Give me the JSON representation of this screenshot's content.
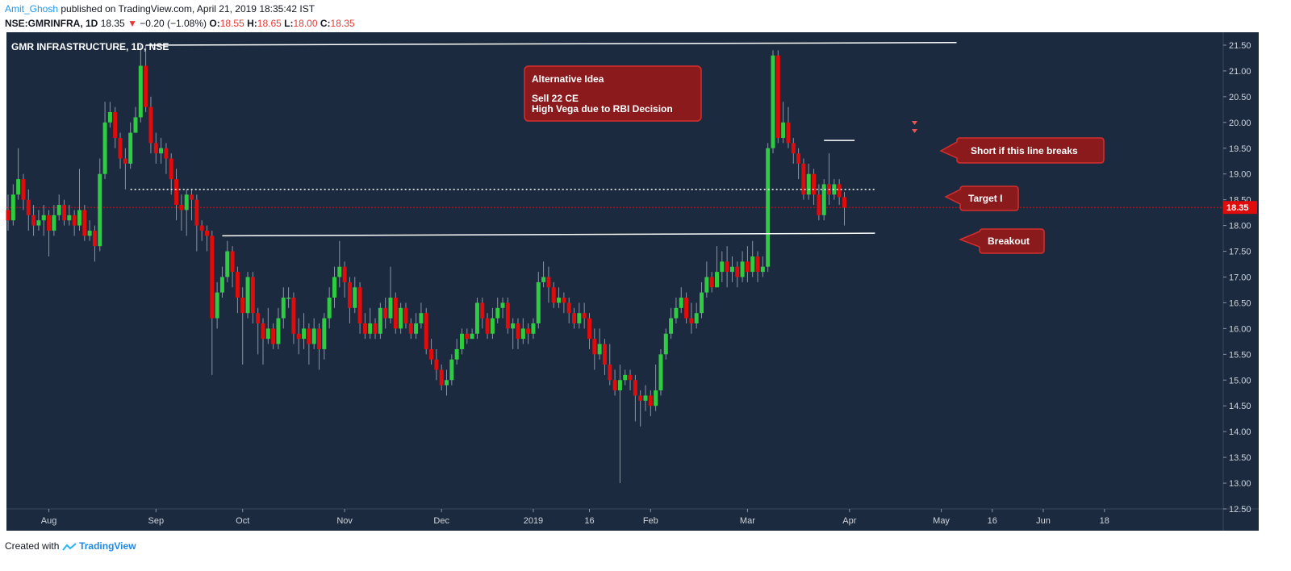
{
  "header": {
    "author": "Amit_Ghosh",
    "published_text": "published on TradingView.com, April 21, 2019 18:35:42 IST",
    "symbol": "NSE:GMRINFRA, 1D",
    "last": "18.35",
    "change_arrow": "▼",
    "change": "−0.20 (−1.08%)",
    "o_label": "O:",
    "o_value": "18.55",
    "h_label": "H:",
    "h_value": "18.65",
    "l_label": "L:",
    "l_value": "18.00",
    "c_label": "C:",
    "c_value": "18.35"
  },
  "footer": {
    "created_with": "Created with",
    "brand": "TradingView"
  },
  "colors": {
    "background": "#1b2a3e",
    "up": "#2ecc40",
    "down": "#e00b0b",
    "annotation_bg": "#8b1a1d",
    "annotation_border": "#d32f2f",
    "price_tag": "#e00b0b",
    "line": "#ffffff"
  },
  "chart_data": {
    "type": "candlestick",
    "title": "GMR INFRASTRUCTURE, 1D, NSE",
    "ylim": [
      12.5,
      21.75
    ],
    "y_ticks": [
      "21.50",
      "21.00",
      "20.50",
      "20.00",
      "19.50",
      "19.00",
      "18.50",
      "18.00",
      "17.50",
      "17.00",
      "16.50",
      "16.00",
      "15.50",
      "15.00",
      "14.50",
      "14.00",
      "13.50",
      "13.00",
      "12.50"
    ],
    "x_ticks": [
      {
        "label": "Aug",
        "bar": 8
      },
      {
        "label": "Sep",
        "bar": 29
      },
      {
        "label": "Oct",
        "bar": 46
      },
      {
        "label": "Nov",
        "bar": 66
      },
      {
        "label": "Dec",
        "bar": 85
      },
      {
        "label": "2019",
        "bar": 103
      },
      {
        "label": "16",
        "bar": 114
      },
      {
        "label": "Feb",
        "bar": 126
      },
      {
        "label": "Mar",
        "bar": 145
      },
      {
        "label": "Apr",
        "bar": 165
      },
      {
        "label": "May",
        "bar": 183
      },
      {
        "label": "16",
        "bar": 193
      },
      {
        "label": "Jun",
        "bar": 203
      },
      {
        "label": "18",
        "bar": 215
      }
    ],
    "last_price": "18.35",
    "candles": [
      [
        18.3,
        18.1,
        18.6,
        17.9
      ],
      [
        18.1,
        18.6,
        18.8,
        18
      ],
      [
        18.6,
        18.9,
        19.5,
        18.5
      ],
      [
        18.9,
        18.5,
        19,
        18.3
      ],
      [
        18.5,
        18.2,
        18.7,
        17.9
      ],
      [
        18.2,
        18.0,
        18.4,
        17.8
      ],
      [
        18.0,
        18.1,
        18.3,
        17.9
      ],
      [
        18.1,
        18.2,
        18.4,
        17.8
      ],
      [
        18.2,
        17.9,
        18.3,
        17.4
      ],
      [
        17.9,
        18.2,
        18.4,
        17.8
      ],
      [
        18.2,
        18.4,
        18.6,
        18.1
      ],
      [
        18.4,
        18.1,
        18.5,
        18
      ],
      [
        18.1,
        18.2,
        18.4,
        18
      ],
      [
        18.2,
        18.0,
        18.3,
        17.8
      ],
      [
        18.0,
        18.3,
        19.1,
        17.9
      ],
      [
        18.3,
        17.8,
        18.4,
        17.7
      ],
      [
        17.8,
        17.9,
        18.1,
        17.7
      ],
      [
        17.9,
        17.6,
        18,
        17.3
      ],
      [
        17.6,
        19.0,
        19.3,
        17.5
      ],
      [
        19.0,
        20.0,
        20.4,
        18.9
      ],
      [
        20.0,
        20.2,
        20.4,
        19.9
      ],
      [
        20.2,
        19.7,
        20.3,
        19.5
      ],
      [
        19.7,
        19.3,
        19.8,
        19.1
      ],
      [
        19.3,
        19.2,
        19.5,
        18.7
      ],
      [
        19.2,
        19.8,
        20,
        19.1
      ],
      [
        19.8,
        20.1,
        20.3,
        19.8
      ],
      [
        20.1,
        21.1,
        21.5,
        20
      ],
      [
        21.1,
        20.3,
        21.5,
        20.2
      ],
      [
        20.3,
        19.6,
        20.5,
        19.4
      ],
      [
        19.6,
        19.4,
        19.8,
        19.2
      ],
      [
        19.4,
        19.5,
        19.7,
        19.2
      ],
      [
        19.5,
        19.3,
        19.6,
        19
      ],
      [
        19.3,
        18.9,
        19.4,
        18.6
      ],
      [
        18.9,
        18.4,
        19.1,
        18.1
      ],
      [
        18.4,
        18.3,
        18.6,
        17.9
      ],
      [
        18.3,
        18.6,
        18.7,
        17.8
      ],
      [
        18.6,
        18.5,
        18.7,
        18.1
      ],
      [
        18.5,
        18.0,
        18.6,
        17.5
      ],
      [
        18.0,
        17.9,
        18.1,
        17.7
      ],
      [
        17.9,
        17.8,
        18,
        17.5
      ],
      [
        17.8,
        16.2,
        17.9,
        15.1
      ],
      [
        16.2,
        16.7,
        16.9,
        16
      ],
      [
        16.7,
        17.0,
        17.2,
        16.6
      ],
      [
        17.0,
        17.5,
        17.7,
        16.9
      ],
      [
        17.5,
        17.1,
        17.6,
        16.8
      ],
      [
        17.1,
        16.6,
        17.2,
        16.3
      ],
      [
        16.6,
        16.3,
        16.8,
        15.3
      ],
      [
        16.3,
        17.0,
        17.1,
        16.2
      ],
      [
        17.0,
        16.3,
        17.1,
        16.1
      ],
      [
        16.3,
        16.1,
        16.4,
        15.5
      ],
      [
        16.1,
        15.8,
        16.2,
        15.3
      ],
      [
        15.8,
        16.0,
        16.4,
        15.7
      ],
      [
        16.0,
        15.7,
        16.1,
        15.6
      ],
      [
        15.7,
        16.2,
        16.4,
        15.6
      ],
      [
        16.2,
        16.6,
        16.8,
        16
      ],
      [
        16.6,
        16.6,
        16.8,
        16.4
      ],
      [
        16.6,
        15.9,
        16.7,
        15.7
      ],
      [
        15.9,
        15.8,
        16.2,
        15.5
      ],
      [
        15.8,
        16.0,
        16.3,
        15.6
      ],
      [
        16.0,
        15.7,
        16.1,
        15.3
      ],
      [
        15.7,
        16.0,
        16.2,
        15.6
      ],
      [
        16.0,
        15.6,
        16.1,
        15.2
      ],
      [
        15.6,
        16.2,
        16.3,
        15.4
      ],
      [
        16.2,
        16.6,
        16.8,
        16
      ],
      [
        16.6,
        17.0,
        17.2,
        16.4
      ],
      [
        17.0,
        17.2,
        17.7,
        16.8
      ],
      [
        17.2,
        16.9,
        17.3,
        16.6
      ],
      [
        16.9,
        16.4,
        17,
        16.1
      ],
      [
        16.4,
        16.8,
        17,
        16.3
      ],
      [
        16.8,
        16.1,
        16.9,
        15.9
      ],
      [
        16.1,
        15.9,
        16.3,
        15.8
      ],
      [
        15.9,
        16.1,
        16.4,
        15.8
      ],
      [
        16.1,
        15.9,
        16.2,
        15.8
      ],
      [
        15.9,
        16.4,
        16.5,
        15.8
      ],
      [
        16.4,
        16.2,
        16.6,
        16
      ],
      [
        16.2,
        16.6,
        17.2,
        16.1
      ],
      [
        16.6,
        16.0,
        16.7,
        15.9
      ],
      [
        16.0,
        16.4,
        16.5,
        15.9
      ],
      [
        16.4,
        16.1,
        16.5,
        16
      ],
      [
        16.1,
        15.9,
        16.2,
        15.8
      ],
      [
        15.9,
        16.1,
        16.3,
        15.8
      ],
      [
        16.1,
        16.3,
        16.5,
        16
      ],
      [
        16.3,
        15.6,
        16.4,
        15.5
      ],
      [
        15.6,
        15.4,
        15.8,
        15.3
      ],
      [
        15.4,
        15.2,
        15.6,
        15
      ],
      [
        15.2,
        14.9,
        15.3,
        14.8
      ],
      [
        14.9,
        15.0,
        15.2,
        14.7
      ],
      [
        15.0,
        15.4,
        15.5,
        14.9
      ],
      [
        15.4,
        15.6,
        15.8,
        15.3
      ],
      [
        15.6,
        15.9,
        16,
        15.5
      ],
      [
        15.9,
        15.8,
        16,
        15.7
      ],
      [
        15.8,
        15.9,
        16,
        15.8
      ],
      [
        15.9,
        16.5,
        16.6,
        15.8
      ],
      [
        16.5,
        16.2,
        16.6,
        16
      ],
      [
        16.2,
        15.9,
        16.3,
        15.8
      ],
      [
        15.9,
        16.2,
        16.4,
        15.8
      ],
      [
        16.2,
        16.4,
        16.6,
        16.1
      ],
      [
        16.4,
        16.5,
        16.6,
        16.2
      ],
      [
        16.5,
        16.0,
        16.6,
        15.9
      ],
      [
        16.0,
        16.1,
        16.2,
        15.6
      ],
      [
        16.1,
        15.8,
        16.2,
        15.6
      ],
      [
        15.8,
        16.0,
        16.2,
        15.7
      ],
      [
        16.0,
        15.9,
        16.1,
        15.7
      ],
      [
        15.9,
        16.1,
        16.2,
        15.8
      ],
      [
        16.1,
        16.9,
        17.1,
        16
      ],
      [
        16.9,
        17.0,
        17.3,
        16.8
      ],
      [
        17.0,
        16.8,
        17.2,
        16.5
      ],
      [
        16.8,
        16.5,
        16.9,
        16.4
      ],
      [
        16.5,
        16.6,
        16.8,
        16.4
      ],
      [
        16.6,
        16.5,
        16.7,
        16.3
      ],
      [
        16.5,
        16.3,
        16.6,
        16.1
      ],
      [
        16.3,
        16.1,
        16.4,
        16
      ],
      [
        16.1,
        16.3,
        16.5,
        16
      ],
      [
        16.3,
        16.2,
        16.5,
        16
      ],
      [
        16.2,
        15.8,
        16.3,
        15.6
      ],
      [
        15.8,
        15.5,
        16,
        15.2
      ],
      [
        15.5,
        15.7,
        16,
        15.4
      ],
      [
        15.7,
        15.3,
        15.8,
        15.1
      ],
      [
        15.3,
        15.0,
        15.7,
        14.9
      ],
      [
        15.0,
        14.8,
        15.2,
        14.7
      ],
      [
        14.8,
        15.0,
        15.3,
        13.0
      ],
      [
        15.0,
        15.1,
        15.2,
        14.9
      ],
      [
        15.1,
        15.0,
        15.2,
        14.8
      ],
      [
        15.0,
        14.7,
        15.1,
        14.2
      ],
      [
        14.7,
        14.6,
        14.8,
        14.1
      ],
      [
        14.6,
        14.7,
        14.9,
        14.4
      ],
      [
        14.7,
        14.5,
        14.8,
        14.3
      ],
      [
        14.5,
        14.8,
        15.3,
        14.4
      ],
      [
        14.8,
        15.5,
        15.6,
        14.7
      ],
      [
        15.5,
        15.9,
        16,
        15.4
      ],
      [
        15.9,
        16.2,
        16.4,
        15.8
      ],
      [
        16.2,
        16.4,
        16.6,
        16.1
      ],
      [
        16.4,
        16.6,
        16.8,
        16.3
      ],
      [
        16.6,
        16.2,
        16.7,
        16.1
      ],
      [
        16.2,
        16.1,
        16.5,
        15.9
      ],
      [
        16.1,
        16.3,
        16.5,
        16
      ],
      [
        16.3,
        16.7,
        16.9,
        16.2
      ],
      [
        16.7,
        17.0,
        17.3,
        16.6
      ],
      [
        17.0,
        16.8,
        17.1,
        16.7
      ],
      [
        16.8,
        17.1,
        17.6,
        16.8
      ],
      [
        17.1,
        17.3,
        17.5,
        16.9
      ],
      [
        17.3,
        17.1,
        17.6,
        16.8
      ],
      [
        17.1,
        17.2,
        17.4,
        16.9
      ],
      [
        17.2,
        17.0,
        17.3,
        16.8
      ],
      [
        17.0,
        17.3,
        17.5,
        16.9
      ],
      [
        17.3,
        17.1,
        17.6,
        16.9
      ],
      [
        17.1,
        17.4,
        17.7,
        17
      ],
      [
        17.4,
        17.1,
        17.5,
        16.9
      ],
      [
        17.1,
        17.2,
        17.4,
        17
      ],
      [
        17.2,
        19.5,
        19.6,
        17.1
      ],
      [
        19.5,
        21.3,
        21.4,
        19.4
      ],
      [
        21.3,
        19.7,
        21.4,
        19.6
      ],
      [
        19.7,
        20.0,
        20.4,
        19.6
      ],
      [
        20.0,
        19.6,
        20.3,
        19.5
      ],
      [
        19.6,
        19.4,
        19.7,
        19.2
      ],
      [
        19.4,
        19.2,
        19.5,
        18.9
      ],
      [
        19.2,
        18.6,
        19.3,
        18.5
      ],
      [
        18.6,
        19.0,
        19.2,
        18.5
      ],
      [
        19.0,
        18.6,
        19.1,
        18.4
      ],
      [
        18.6,
        18.2,
        18.8,
        18.1
      ],
      [
        18.2,
        18.8,
        18.9,
        18.1
      ],
      [
        18.8,
        18.6,
        19.4,
        18.4
      ],
      [
        18.6,
        18.8,
        18.9,
        18.5
      ],
      [
        18.8,
        18.55,
        18.9,
        18.4
      ],
      [
        18.55,
        18.35,
        18.65,
        18.0
      ]
    ],
    "trendlines": [
      {
        "from": {
          "bar": 27,
          "price": 21.5
        },
        "to": {
          "bar": 186,
          "price": 21.55
        }
      },
      {
        "from": {
          "bar": 24,
          "price": 18.7
        },
        "to": {
          "bar": 170,
          "price": 18.7
        },
        "style": "dotted"
      },
      {
        "from": {
          "bar": 42,
          "price": 17.8
        },
        "to": {
          "bar": 170,
          "price": 17.85
        }
      },
      {
        "from": {
          "bar": 160,
          "price": 19.65
        },
        "to": {
          "bar": 166,
          "price": 19.65
        }
      }
    ],
    "annotations": [
      {
        "title": "Alternative Idea",
        "lines": [
          "Sell 22 CE",
          "High Vega due to RBI Decision"
        ]
      },
      {
        "text": "Short if this line breaks"
      },
      {
        "text": "Target I"
      },
      {
        "text": "Breakout"
      }
    ]
  }
}
